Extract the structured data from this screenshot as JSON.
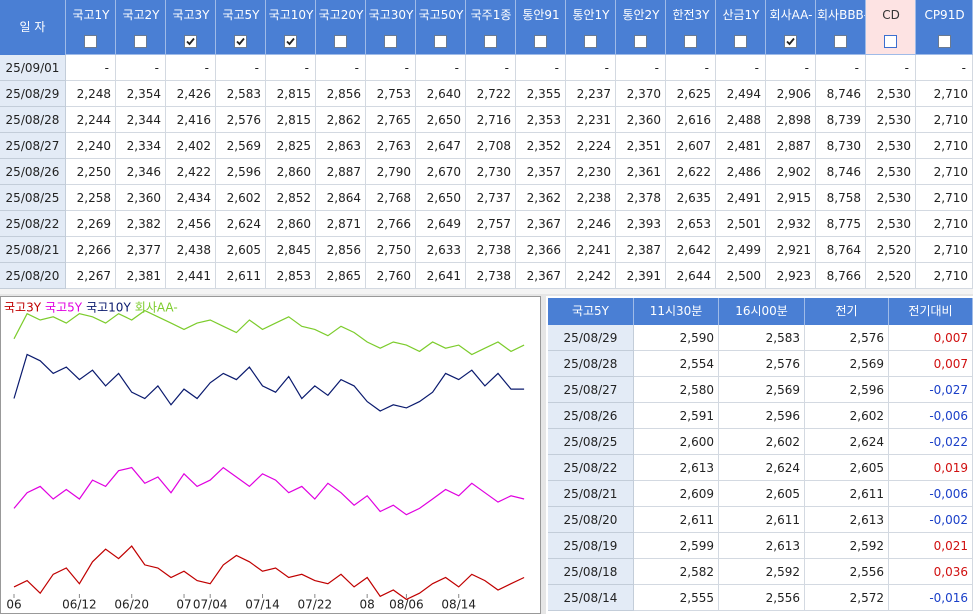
{
  "rates_table": {
    "date_header": "일 자",
    "columns": [
      "국고1Y",
      "국고2Y",
      "국고3Y",
      "국고5Y",
      "국고10Y",
      "국고20Y",
      "국고30Y",
      "국고50Y",
      "국주1종",
      "통안91",
      "통안1Y",
      "통안2Y",
      "한전3Y",
      "산금1Y",
      "회사AA-",
      "회사BBB-",
      "CD",
      "CP91D"
    ],
    "checked": [
      false,
      false,
      true,
      true,
      true,
      false,
      false,
      false,
      false,
      false,
      false,
      false,
      false,
      false,
      true,
      false,
      false,
      false
    ],
    "highlighted_index": 16,
    "rows": [
      {
        "date": "25/09/01",
        "values": [
          "-",
          "-",
          "-",
          "-",
          "-",
          "-",
          "-",
          "-",
          "-",
          "-",
          "-",
          "-",
          "-",
          "-",
          "-",
          "-",
          "-",
          "-"
        ]
      },
      {
        "date": "25/08/29",
        "values": [
          "2,248",
          "2,354",
          "2,426",
          "2,583",
          "2,815",
          "2,856",
          "2,753",
          "2,640",
          "2,722",
          "2,355",
          "2,237",
          "2,370",
          "2,625",
          "2,494",
          "2,906",
          "8,746",
          "2,530",
          "2,710"
        ]
      },
      {
        "date": "25/08/28",
        "values": [
          "2,244",
          "2,344",
          "2,416",
          "2,576",
          "2,815",
          "2,862",
          "2,765",
          "2,650",
          "2,716",
          "2,353",
          "2,231",
          "2,360",
          "2,616",
          "2,488",
          "2,898",
          "8,739",
          "2,530",
          "2,710"
        ]
      },
      {
        "date": "25/08/27",
        "values": [
          "2,240",
          "2,334",
          "2,402",
          "2,569",
          "2,825",
          "2,863",
          "2,763",
          "2,647",
          "2,708",
          "2,352",
          "2,224",
          "2,351",
          "2,607",
          "2,481",
          "2,887",
          "8,730",
          "2,530",
          "2,710"
        ]
      },
      {
        "date": "25/08/26",
        "values": [
          "2,250",
          "2,346",
          "2,422",
          "2,596",
          "2,860",
          "2,887",
          "2,790",
          "2,670",
          "2,730",
          "2,357",
          "2,230",
          "2,361",
          "2,622",
          "2,486",
          "2,902",
          "8,746",
          "2,530",
          "2,710"
        ]
      },
      {
        "date": "25/08/25",
        "values": [
          "2,258",
          "2,360",
          "2,434",
          "2,602",
          "2,852",
          "2,864",
          "2,768",
          "2,650",
          "2,737",
          "2,362",
          "2,238",
          "2,378",
          "2,635",
          "2,491",
          "2,915",
          "8,758",
          "2,530",
          "2,710"
        ]
      },
      {
        "date": "25/08/22",
        "values": [
          "2,269",
          "2,382",
          "2,456",
          "2,624",
          "2,860",
          "2,871",
          "2,766",
          "2,649",
          "2,757",
          "2,367",
          "2,246",
          "2,393",
          "2,653",
          "2,501",
          "2,932",
          "8,775",
          "2,530",
          "2,710"
        ]
      },
      {
        "date": "25/08/21",
        "values": [
          "2,266",
          "2,377",
          "2,438",
          "2,605",
          "2,845",
          "2,856",
          "2,750",
          "2,633",
          "2,738",
          "2,366",
          "2,241",
          "2,387",
          "2,642",
          "2,499",
          "2,921",
          "8,764",
          "2,520",
          "2,710"
        ]
      },
      {
        "date": "25/08/20",
        "values": [
          "2,267",
          "2,381",
          "2,441",
          "2,611",
          "2,853",
          "2,865",
          "2,760",
          "2,641",
          "2,738",
          "2,367",
          "2,242",
          "2,391",
          "2,644",
          "2,500",
          "2,923",
          "8,766",
          "2,520",
          "2,710"
        ]
      }
    ]
  },
  "chart_data": {
    "type": "line",
    "categories": [
      "06",
      null,
      null,
      null,
      null,
      "06/12",
      null,
      null,
      null,
      "06/20",
      null,
      null,
      null,
      "07",
      null,
      "07/04",
      null,
      null,
      null,
      "07/14",
      null,
      null,
      null,
      "07/22",
      null,
      null,
      null,
      "08",
      null,
      null,
      "08/06",
      null,
      null,
      null,
      "08/14",
      null,
      null,
      null,
      null,
      null
    ],
    "ylim": [
      0,
      100
    ],
    "series": [
      {
        "name": "국고3Y",
        "color": "#c00000",
        "values": [
          8,
          10,
          6,
          12,
          14,
          9,
          16,
          20,
          17,
          21,
          15,
          14,
          11,
          13,
          10,
          9,
          15,
          18,
          16,
          13,
          14,
          11,
          12,
          10,
          9,
          12,
          8,
          11,
          5,
          7,
          4,
          6,
          9,
          11,
          8,
          12,
          10,
          7,
          9,
          11
        ]
      },
      {
        "name": "국고5Y",
        "color": "#e000e0",
        "values": [
          33,
          38,
          40,
          36,
          39,
          36,
          42,
          40,
          45,
          46,
          41,
          43,
          38,
          44,
          40,
          42,
          46,
          43,
          40,
          44,
          42,
          38,
          40,
          36,
          41,
          38,
          34,
          37,
          32,
          34,
          31,
          33,
          36,
          39,
          37,
          41,
          38,
          35,
          37,
          36
        ]
      },
      {
        "name": "국고10Y",
        "color": "#0a1a6e",
        "values": [
          68,
          82,
          80,
          76,
          78,
          74,
          77,
          72,
          76,
          70,
          68,
          72,
          66,
          71,
          68,
          73,
          76,
          74,
          78,
          72,
          70,
          75,
          68,
          72,
          69,
          74,
          72,
          67,
          64,
          66,
          65,
          67,
          70,
          76,
          74,
          77,
          72,
          76,
          71,
          71
        ]
      },
      {
        "name": "회사AA-",
        "color": "#7ccc2c",
        "values": [
          87,
          95,
          93,
          94,
          92,
          95,
          94,
          92,
          95,
          93,
          96,
          94,
          92,
          90,
          92,
          93,
          91,
          89,
          93,
          90,
          92,
          94,
          91,
          90,
          88,
          91,
          89,
          86,
          84,
          86,
          85,
          83,
          86,
          84,
          85,
          82,
          84,
          86,
          83,
          85
        ]
      }
    ]
  },
  "detail_table": {
    "headers": [
      "국고5Y",
      "11시30분",
      "16시00분",
      "전기",
      "전기대비"
    ],
    "rows": [
      [
        "25/08/29",
        "2,590",
        "2,583",
        "2,576",
        "0,007"
      ],
      [
        "25/08/28",
        "2,554",
        "2,576",
        "2,569",
        "0,007"
      ],
      [
        "25/08/27",
        "2,580",
        "2,569",
        "2,596",
        "-0,027"
      ],
      [
        "25/08/26",
        "2,591",
        "2,596",
        "2,602",
        "-0,006"
      ],
      [
        "25/08/25",
        "2,600",
        "2,602",
        "2,624",
        "-0,022"
      ],
      [
        "25/08/22",
        "2,613",
        "2,624",
        "2,605",
        "0,019"
      ],
      [
        "25/08/21",
        "2,609",
        "2,605",
        "2,611",
        "-0,006"
      ],
      [
        "25/08/20",
        "2,611",
        "2,611",
        "2,613",
        "-0,002"
      ],
      [
        "25/08/19",
        "2,599",
        "2,613",
        "2,592",
        "0,021"
      ],
      [
        "25/08/18",
        "2,582",
        "2,592",
        "2,556",
        "0,036"
      ],
      [
        "25/08/14",
        "2,555",
        "2,556",
        "2,572",
        "-0,016"
      ]
    ]
  }
}
